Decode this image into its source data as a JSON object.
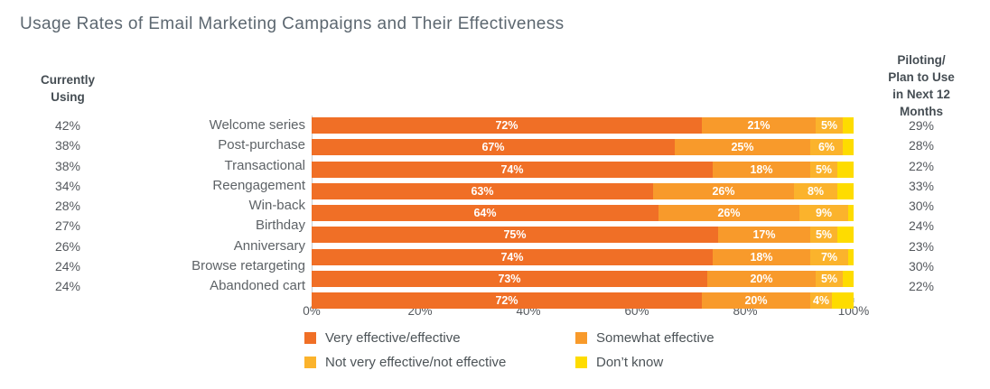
{
  "title": "Usage Rates of Email Marketing Campaigns and Their Effectiveness",
  "left_column": {
    "header": "Currently\nUsing"
  },
  "right_column": {
    "header": "Piloting/\nPlan to Use\nin Next 12\nMonths"
  },
  "chart_data": {
    "type": "bar",
    "orientation": "horizontal-stacked",
    "categories": [
      "Welcome series",
      "Post-purchase",
      "Transactional",
      "Reengagement",
      "Win-back",
      "Birthday",
      "Anniversary",
      "Browse retargeting",
      "Abandoned cart"
    ],
    "currently_using_pct": [
      42,
      38,
      38,
      34,
      28,
      27,
      26,
      24,
      24
    ],
    "piloting_plan_pct": [
      29,
      28,
      22,
      33,
      30,
      24,
      23,
      30,
      22
    ],
    "series": [
      {
        "name": "Very effective/effective",
        "color": "#F06F26",
        "values": [
          72,
          67,
          74,
          63,
          64,
          75,
          74,
          73,
          72
        ],
        "labels_visible": true
      },
      {
        "name": "Somewhat effective",
        "color": "#F89A2B",
        "values": [
          21,
          25,
          18,
          26,
          26,
          17,
          18,
          20,
          20
        ],
        "labels_visible": true
      },
      {
        "name": "Not very effective/not effective",
        "color": "#FBB32C",
        "values": [
          5,
          6,
          5,
          8,
          9,
          5,
          7,
          5,
          4
        ],
        "labels_visible": true
      },
      {
        "name": "Don’t know",
        "color": "#FEDC00",
        "values": [
          2,
          2,
          3,
          3,
          1,
          3,
          1,
          2,
          4
        ],
        "labels_visible": false
      }
    ],
    "x_ticks": [
      "0%",
      "20%",
      "40%",
      "60%",
      "80%",
      "100%"
    ],
    "xlim": [
      0,
      100
    ],
    "grid": false,
    "legend_position": "bottom"
  },
  "legend": {
    "items": [
      {
        "label": "Very effective/effective",
        "color": "#F06F26"
      },
      {
        "label": "Somewhat effective",
        "color": "#F89A2B"
      },
      {
        "label": "Not very effective/not effective",
        "color": "#FBB32C"
      },
      {
        "label": "Don’t know",
        "color": "#FEDC00"
      }
    ]
  },
  "colors": {
    "title_text": "#5C6770",
    "header_text": "#454D53",
    "value_text": "#54585D",
    "category_text": "#5D6266",
    "axis_line": "#C9CFD3",
    "bar_label_text": "#FFFFFF"
  }
}
